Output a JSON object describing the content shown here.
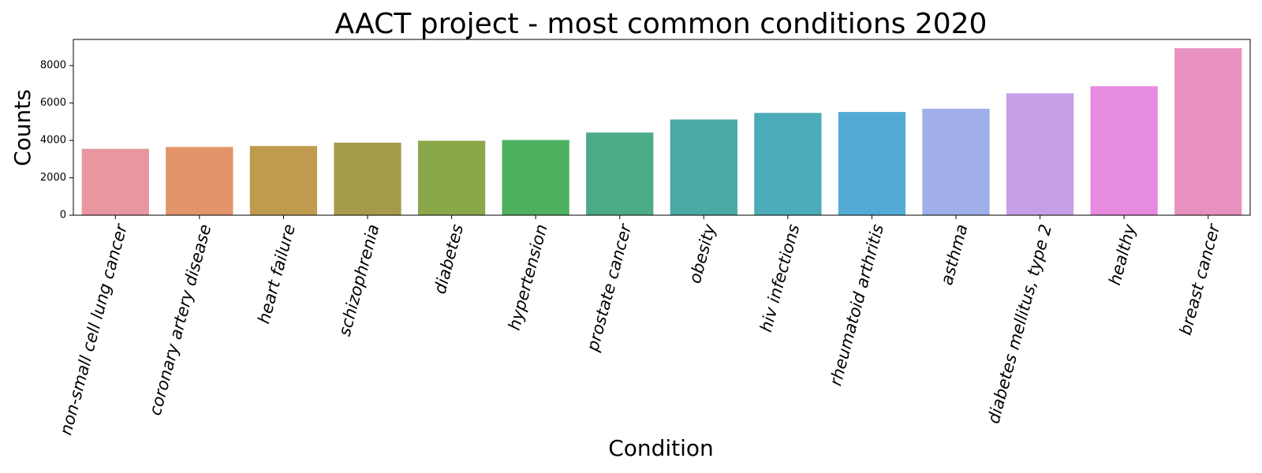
{
  "chart_data": {
    "type": "bar",
    "title": "AACT project - most common conditions 2020",
    "xlabel": "Condition",
    "ylabel": "Counts",
    "categories": [
      "non-small cell lung cancer",
      "coronary artery disease",
      "heart failure",
      "schizophrenia",
      "diabetes",
      "hypertension",
      "prostate cancer",
      "obesity",
      "hiv infections",
      "rheumatoid arthritis",
      "asthma",
      "diabetes mellitus, type 2",
      "healthy",
      "breast cancer"
    ],
    "values": [
      3550,
      3650,
      3700,
      3880,
      3980,
      4020,
      4420,
      5120,
      5470,
      5520,
      5690,
      6520,
      6900,
      8930
    ],
    "colors": [
      "#e8969f",
      "#e3946a",
      "#c09a4f",
      "#a69b4a",
      "#8aa74a",
      "#4cb05f",
      "#4bab87",
      "#4aa9a4",
      "#4babb8",
      "#53abd5",
      "#a0aeea",
      "#c79fe8",
      "#e78be0",
      "#e891c0"
    ],
    "yticks": [
      0,
      2000,
      4000,
      6000,
      8000
    ],
    "ylim": [
      0,
      9400
    ],
    "grid": false,
    "legend": "none"
  }
}
